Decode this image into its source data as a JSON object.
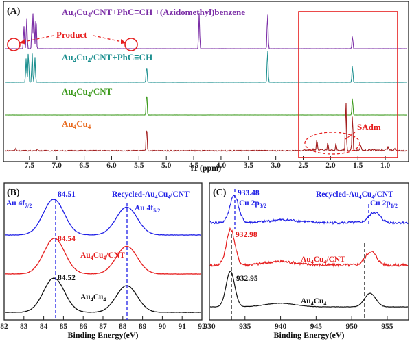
{
  "colors": {
    "purple": "#7b2ea6",
    "teal": "#1e9090",
    "green": "#3c9a1c",
    "darkred": "#a21e1e",
    "orange": "#e86a1e",
    "red": "#e61e1e",
    "blue": "#1f1fe6",
    "black": "#111111",
    "axis": "#222222"
  },
  "chart_data": [
    {
      "panel": "(A)",
      "type": "line",
      "xlabel": "f1 (ppm)",
      "xlim": [
        7.95,
        0.6
      ],
      "xticks": [
        "7.5",
        "7.0",
        "6.5",
        "6.0",
        "5.5",
        "5.0",
        "4.5",
        "4.0",
        "3.5",
        "3.0",
        "2.5",
        "2.0",
        "1.5",
        "1.0"
      ],
      "series": [
        {
          "name": "Au4Cu4/CNT+PhC≡CH +(Azidomethyl)benzene",
          "peaks": [
            {
              "x": 7.6,
              "h": 0.6
            },
            {
              "x": 7.55,
              "h": 0.8
            },
            {
              "x": 7.45,
              "h": 0.95
            },
            {
              "x": 7.42,
              "h": 1.0
            },
            {
              "x": 7.38,
              "h": 0.9
            },
            {
              "x": 4.4,
              "h": 0.95
            },
            {
              "x": 3.15,
              "h": 1.0
            },
            {
              "x": 1.6,
              "h": 0.35
            }
          ]
        },
        {
          "name": "Au4Cu4/CNT+PhC≡CH",
          "peaks": [
            {
              "x": 7.56,
              "h": 0.7
            },
            {
              "x": 7.52,
              "h": 0.9
            },
            {
              "x": 7.45,
              "h": 0.85
            },
            {
              "x": 7.4,
              "h": 0.75
            },
            {
              "x": 5.36,
              "h": 0.5
            },
            {
              "x": 3.15,
              "h": 1.0
            },
            {
              "x": 1.6,
              "h": 0.5
            }
          ]
        },
        {
          "name": "Au4Cu4/CNT",
          "peaks": [
            {
              "x": 5.36,
              "h": 1.0
            },
            {
              "x": 1.6,
              "h": 0.75
            }
          ]
        },
        {
          "name": "Au4Cu4",
          "peaks": [
            {
              "x": 5.36,
              "h": 0.5
            },
            {
              "x": 1.72,
              "h": 1.0
            },
            {
              "x": 1.6,
              "h": 0.7
            },
            {
              "x": 2.25,
              "h": 0.2
            },
            {
              "x": 2.05,
              "h": 0.15
            },
            {
              "x": 1.9,
              "h": 0.12
            },
            {
              "x": 1.45,
              "h": 0.1
            },
            {
              "x": 0.95,
              "h": 0.08
            },
            {
              "x": 7.75,
              "h": 0.05
            },
            {
              "x": 7.35,
              "h": 0.04
            }
          ]
        }
      ],
      "annotations": [
        "Product",
        "SAdm"
      ]
    },
    {
      "panel": "(B)",
      "type": "line",
      "xlabel": "Binding Energy(eV)",
      "xlim": [
        82,
        92
      ],
      "xticks": [
        "82",
        "83",
        "84",
        "85",
        "86",
        "87",
        "88",
        "89",
        "90",
        "91",
        "92"
      ],
      "series": [
        {
          "name": "Recycled-Au4Cu4/CNT",
          "peak_positions": [
            84.51,
            88.2
          ]
        },
        {
          "name": "Au4Cu4/CNT",
          "peak_positions": [
            84.54,
            88.2
          ]
        },
        {
          "name": "Au4Cu4",
          "peak_positions": [
            84.52,
            88.2
          ]
        }
      ],
      "annotations": [
        "84.51",
        "84.54",
        "84.52"
      ]
    },
    {
      "panel": "(C)",
      "type": "line",
      "xlabel": "Binding Energy(eV)",
      "xlim": [
        930,
        958
      ],
      "xticks": [
        "930",
        "935",
        "940",
        "945",
        "950",
        "955"
      ],
      "series": [
        {
          "name": "Recycled-Au4Cu4/CNT",
          "peak_positions": [
            933.48,
            953.2
          ]
        },
        {
          "name": "Au4Cu4/CNT",
          "peak_positions": [
            932.98,
            952.7
          ]
        },
        {
          "name": "Au4Cu4",
          "peak_positions": [
            932.95,
            952.6
          ]
        }
      ],
      "annotations": [
        "933.48",
        "932.98",
        "932.95"
      ]
    }
  ]
}
